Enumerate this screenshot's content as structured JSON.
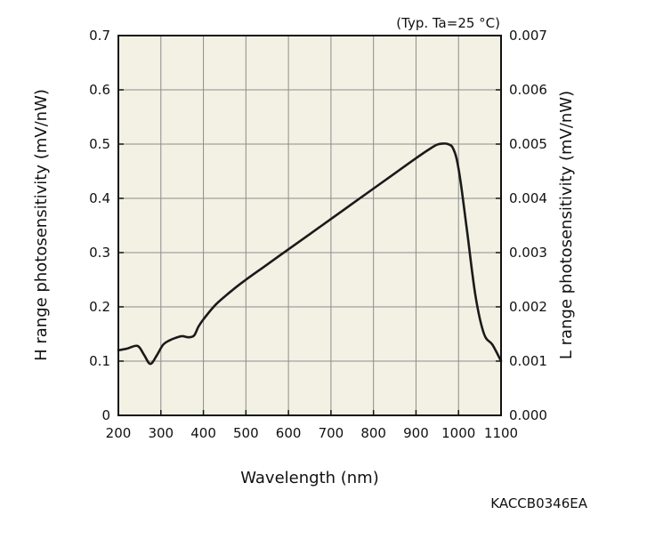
{
  "chart_data": {
    "type": "line",
    "annotation": "(Typ. Ta=25 °C)",
    "footnote": "KACCB0346EA",
    "xlabel": "Wavelength (nm)",
    "ylabel_left": "H range photosensitivity (mV/nW)",
    "ylabel_right": "L range photosensitivity (mV/nW)",
    "xlim": [
      200,
      1100
    ],
    "ylim_left": [
      0,
      0.7
    ],
    "ylim_right": [
      0,
      0.007
    ],
    "x_ticks": [
      "200",
      "300",
      "400",
      "500",
      "600",
      "700",
      "800",
      "900",
      "1000",
      "1100"
    ],
    "y_ticks_left": [
      "0",
      "0.1",
      "0.2",
      "0.3",
      "0.4",
      "0.5",
      "0.6",
      "0.7"
    ],
    "y_ticks_right": [
      "0.000",
      "0.001",
      "0.002",
      "0.003",
      "0.004",
      "0.005",
      "0.006",
      "0.007"
    ],
    "grid": true,
    "colors": {
      "plot_bg": "#f3f1e4",
      "line": "#1a1a1a",
      "grid": "#8c8c8c"
    },
    "series": [
      {
        "x": [
          200,
          220,
          245,
          260,
          275,
          290,
          305,
          320,
          335,
          350,
          365,
          378,
          388,
          400,
          430,
          470,
          500,
          550,
          600,
          650,
          700,
          750,
          800,
          850,
          900,
          930,
          950,
          965,
          975,
          985,
          995,
          1005,
          1020,
          1040,
          1060,
          1080,
          1100
        ],
        "y": [
          0.12,
          0.123,
          0.128,
          0.112,
          0.095,
          0.11,
          0.13,
          0.138,
          0.143,
          0.146,
          0.144,
          0.147,
          0.163,
          0.177,
          0.205,
          0.232,
          0.25,
          0.278,
          0.306,
          0.334,
          0.362,
          0.39,
          0.418,
          0.446,
          0.474,
          0.49,
          0.499,
          0.501,
          0.5,
          0.495,
          0.475,
          0.43,
          0.34,
          0.22,
          0.15,
          0.13,
          0.1
        ]
      }
    ]
  }
}
